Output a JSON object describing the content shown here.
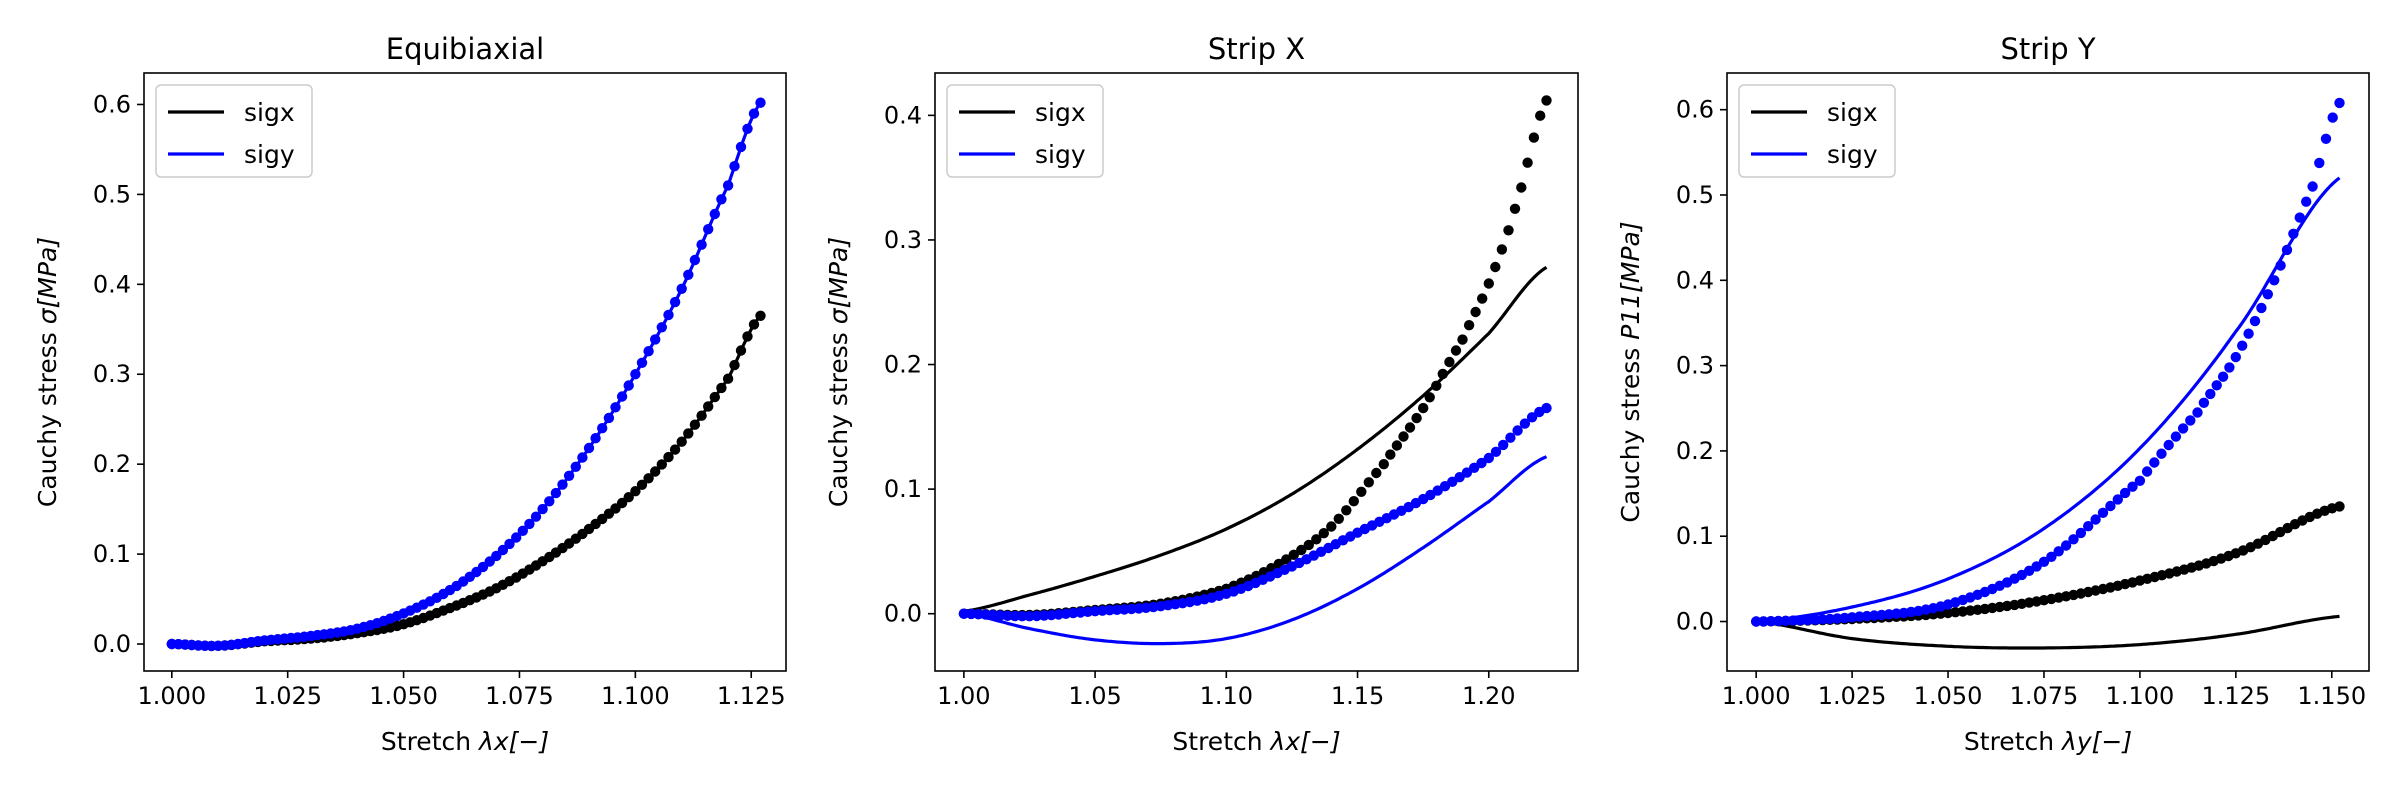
{
  "chart_data": [
    {
      "type": "line",
      "title": "Equibiaxial",
      "xlabel_prefix": "Stretch ",
      "xlabel_math": "λx[−]",
      "ylabel_prefix": "Cauchy stress ",
      "ylabel_math": "σ[MPa]",
      "xlim": [
        0.994,
        1.1325
      ],
      "ylim": [
        -0.03,
        0.635
      ],
      "xticks": [
        1.0,
        1.025,
        1.05,
        1.075,
        1.1,
        1.125
      ],
      "xtick_labels": [
        "1.000",
        "1.025",
        "1.050",
        "1.075",
        "1.100",
        "1.125"
      ],
      "yticks": [
        0.0,
        0.1,
        0.2,
        0.3,
        0.4,
        0.5,
        0.6
      ],
      "ytick_labels": [
        "0.0",
        "0.1",
        "0.2",
        "0.3",
        "0.4",
        "0.5",
        "0.6"
      ],
      "legend": {
        "position": "top-left",
        "entries": [
          "sigx",
          "sigy"
        ]
      },
      "grid": false,
      "series": [
        {
          "name": "sigx",
          "kind": "model-line",
          "color": "#000000",
          "x": [
            1.0,
            1.01,
            1.02,
            1.03,
            1.04,
            1.05,
            1.06,
            1.07,
            1.08,
            1.09,
            1.1,
            1.11,
            1.12,
            1.127
          ],
          "y": [
            0.0,
            -0.002,
            0.003,
            0.006,
            0.012,
            0.022,
            0.04,
            0.062,
            0.092,
            0.128,
            0.17,
            0.225,
            0.295,
            0.365
          ]
        },
        {
          "name": "sigy",
          "kind": "model-line",
          "color": "#0000ff",
          "x": [
            1.0,
            1.01,
            1.02,
            1.03,
            1.04,
            1.05,
            1.06,
            1.07,
            1.08,
            1.09,
            1.1,
            1.11,
            1.12,
            1.127
          ],
          "y": [
            0.0,
            -0.002,
            0.004,
            0.009,
            0.017,
            0.034,
            0.06,
            0.098,
            0.15,
            0.218,
            0.3,
            0.395,
            0.51,
            0.602
          ]
        },
        {
          "name": "sigx",
          "kind": "data-points",
          "color": "#000000",
          "x": [
            1.0,
            1.01,
            1.02,
            1.03,
            1.04,
            1.05,
            1.06,
            1.07,
            1.08,
            1.09,
            1.1,
            1.11,
            1.12,
            1.127
          ],
          "y": [
            0.0,
            -0.002,
            0.003,
            0.006,
            0.012,
            0.022,
            0.04,
            0.062,
            0.092,
            0.128,
            0.17,
            0.225,
            0.295,
            0.365
          ]
        },
        {
          "name": "sigy",
          "kind": "data-points",
          "color": "#0000ff",
          "x": [
            1.0,
            1.01,
            1.02,
            1.03,
            1.04,
            1.05,
            1.06,
            1.07,
            1.08,
            1.09,
            1.1,
            1.11,
            1.12,
            1.127
          ],
          "y": [
            0.0,
            -0.002,
            0.004,
            0.009,
            0.017,
            0.034,
            0.06,
            0.098,
            0.15,
            0.218,
            0.3,
            0.395,
            0.51,
            0.602
          ]
        }
      ]
    },
    {
      "type": "line",
      "title": "Strip X",
      "xlabel_prefix": "Stretch ",
      "xlabel_math": "λx[−]",
      "ylabel_prefix": "Cauchy stress ",
      "ylabel_math": "σ[MPa]",
      "xlim": [
        0.989,
        1.234
      ],
      "ylim": [
        -0.046,
        0.434
      ],
      "xticks": [
        1.0,
        1.05,
        1.1,
        1.15,
        1.2
      ],
      "xtick_labels": [
        "1.00",
        "1.05",
        "1.10",
        "1.15",
        "1.20"
      ],
      "yticks": [
        0.0,
        0.1,
        0.2,
        0.3,
        0.4
      ],
      "ytick_labels": [
        "0.0",
        "0.1",
        "0.2",
        "0.3",
        "0.4"
      ],
      "legend": {
        "position": "top-left",
        "entries": [
          "sigx",
          "sigy"
        ]
      },
      "grid": false,
      "series": [
        {
          "name": "sigx",
          "kind": "model-line",
          "color": "#000000",
          "x": [
            1.0,
            1.025,
            1.05,
            1.075,
            1.1,
            1.125,
            1.15,
            1.175,
            1.2,
            1.222
          ],
          "y": [
            0.002,
            0.015,
            0.03,
            0.047,
            0.068,
            0.096,
            0.132,
            0.175,
            0.225,
            0.278
          ]
        },
        {
          "name": "sigy",
          "kind": "model-line",
          "color": "#0000ff",
          "x": [
            1.0,
            1.025,
            1.05,
            1.075,
            1.1,
            1.125,
            1.15,
            1.175,
            1.2,
            1.222
          ],
          "y": [
            0.0,
            -0.012,
            -0.021,
            -0.024,
            -0.02,
            -0.005,
            0.02,
            0.053,
            0.09,
            0.126
          ]
        },
        {
          "name": "sigx",
          "kind": "data-points",
          "color": "#000000",
          "x": [
            1.0,
            1.025,
            1.05,
            1.075,
            1.1,
            1.12,
            1.14,
            1.16,
            1.175,
            1.19,
            1.2,
            1.21,
            1.222
          ],
          "y": [
            0.0,
            -0.001,
            0.003,
            0.008,
            0.02,
            0.04,
            0.07,
            0.12,
            0.165,
            0.22,
            0.265,
            0.325,
            0.412
          ]
        },
        {
          "name": "sigy",
          "kind": "data-points",
          "color": "#0000ff",
          "x": [
            1.0,
            1.025,
            1.05,
            1.075,
            1.1,
            1.125,
            1.15,
            1.175,
            1.2,
            1.222
          ],
          "y": [
            0.0,
            -0.002,
            0.002,
            0.006,
            0.016,
            0.038,
            0.065,
            0.092,
            0.125,
            0.165
          ]
        }
      ]
    },
    {
      "type": "line",
      "title": "Strip Y",
      "xlabel_prefix": "Stretch ",
      "xlabel_math": "λy[−]",
      "ylabel_prefix": "Cauchy stress ",
      "ylabel_math": "P11[MPa]",
      "xlim": [
        0.9924,
        1.1597
      ],
      "ylim": [
        -0.058,
        0.643
      ],
      "xticks": [
        1.0,
        1.025,
        1.05,
        1.075,
        1.1,
        1.125,
        1.15
      ],
      "xtick_labels": [
        "1.000",
        "1.025",
        "1.050",
        "1.075",
        "1.100",
        "1.125",
        "1.150"
      ],
      "yticks": [
        0.0,
        0.1,
        0.2,
        0.3,
        0.4,
        0.5,
        0.6
      ],
      "ytick_labels": [
        "0.0",
        "0.1",
        "0.2",
        "0.3",
        "0.4",
        "0.5",
        "0.6"
      ],
      "legend": {
        "position": "top-left",
        "entries": [
          "sigx",
          "sigy"
        ]
      },
      "grid": false,
      "series": [
        {
          "name": "sigx",
          "kind": "model-line",
          "color": "#000000",
          "x": [
            1.0,
            1.025,
            1.05,
            1.075,
            1.1,
            1.125,
            1.152
          ],
          "y": [
            0.0,
            -0.02,
            -0.029,
            -0.031,
            -0.027,
            -0.015,
            0.006
          ]
        },
        {
          "name": "sigy",
          "kind": "model-line",
          "color": "#0000ff",
          "x": [
            1.0,
            1.025,
            1.05,
            1.075,
            1.1,
            1.125,
            1.152
          ],
          "y": [
            0.0,
            0.017,
            0.05,
            0.109,
            0.203,
            0.34,
            0.52
          ]
        },
        {
          "name": "sigx",
          "kind": "data-points",
          "color": "#000000",
          "x": [
            1.0,
            1.025,
            1.05,
            1.075,
            1.1,
            1.125,
            1.152
          ],
          "y": [
            0.0,
            0.003,
            0.01,
            0.025,
            0.048,
            0.08,
            0.135
          ]
        },
        {
          "name": "sigy",
          "kind": "data-points",
          "color": "#0000ff",
          "x": [
            1.0,
            1.025,
            1.05,
            1.075,
            1.1,
            1.115,
            1.125,
            1.135,
            1.145,
            1.152
          ],
          "y": [
            0.0,
            0.005,
            0.02,
            0.07,
            0.165,
            0.245,
            0.31,
            0.4,
            0.51,
            0.608
          ]
        }
      ]
    }
  ]
}
